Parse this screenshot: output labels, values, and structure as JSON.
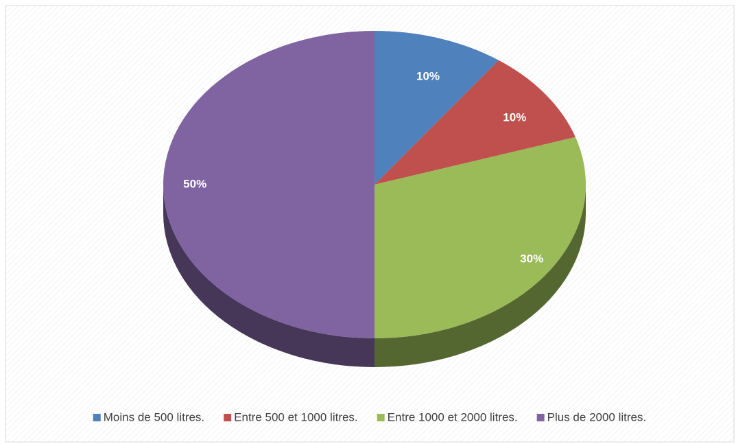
{
  "chart_data": {
    "type": "pie",
    "style": "3d",
    "categories": [
      "Moins de 500 litres.",
      "Entre 500 et 1000 litres.",
      "Entre 1000 et 2000 litres.",
      "Plus de 2000 litres."
    ],
    "values": [
      10,
      10,
      30,
      50
    ],
    "value_labels": [
      "10%",
      "10%",
      "30%",
      "50%"
    ],
    "colors": [
      "#4f81bd",
      "#c0504d",
      "#9bbb59",
      "#8064a2"
    ],
    "legend": "bottom"
  }
}
